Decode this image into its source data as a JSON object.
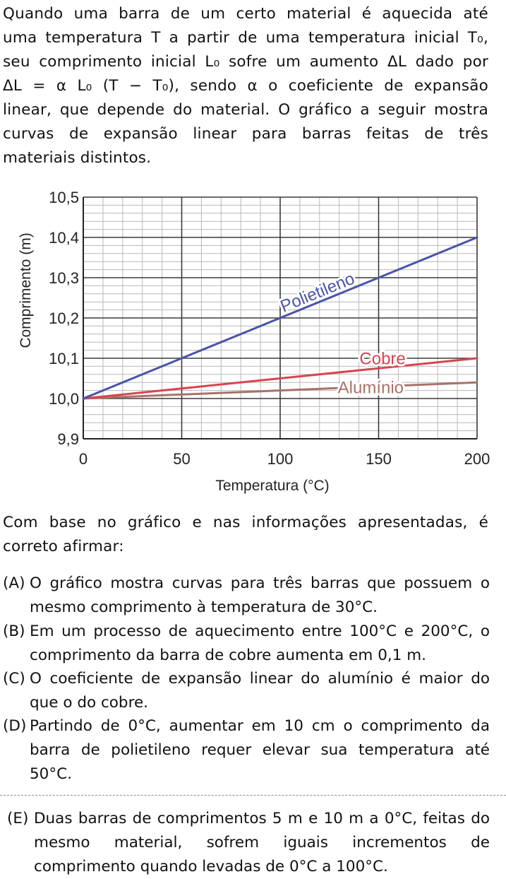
{
  "intro": {
    "lines": [
      "Quando uma barra de um certo material é aquecida até",
      "uma temperatura T a partir de uma temperatura inicial T₀,",
      "seu comprimento inicial L₀ sofre um aumento ΔL dado por",
      "ΔL = α L₀ (T − T₀), sendo α o coeficiente de expansão",
      "linear, que depende do material. O gráfico a seguir mostra",
      "curvas de expansão linear para barras feitas de três",
      "materiais distintos."
    ]
  },
  "question": {
    "lines": [
      "Com base no gráfico e nas informações apresentadas, é",
      "correto afirmar:"
    ]
  },
  "options": [
    {
      "letter": "(A)",
      "lines": [
        "O gráfico mostra curvas para três barras que possuem o",
        "mesmo comprimento à temperatura de 30°C."
      ]
    },
    {
      "letter": "(B)",
      "lines": [
        "Em um processo de aquecimento entre 100°C e 200°C, o",
        "comprimento da barra de cobre aumenta em 0,1 m."
      ]
    },
    {
      "letter": "(C)",
      "lines": [
        "O coeficiente de expansão linear do alumínio é maior do",
        "que o do cobre."
      ]
    },
    {
      "letter": "(D)",
      "lines": [
        "Partindo de 0°C, aumentar em 10 cm o comprimento da",
        "barra de polietileno requer elevar sua temperatura até",
        "50°C."
      ]
    },
    {
      "letter": "(E)",
      "lines": [
        "Duas barras de comprimentos 5 m e 10 m a 0°C, feitas do",
        "mesmo material, sofrem iguais incrementos de",
        "comprimento quando levadas de 0°C a 100°C."
      ]
    }
  ],
  "chart_data": {
    "type": "line",
    "title": "",
    "xlabel": "Temperatura (°C)",
    "ylabel": "Comprimento (m)",
    "xlim": [
      0,
      200
    ],
    "ylim": [
      9.9,
      10.5
    ],
    "x_ticks": [
      0,
      50,
      100,
      150,
      200
    ],
    "x_tick_labels": [
      "0",
      "50",
      "100",
      "150",
      "200"
    ],
    "y_ticks": [
      9.9,
      10.0,
      10.1,
      10.2,
      10.3,
      10.4,
      10.5
    ],
    "y_tick_labels": [
      "9,9",
      "10,0",
      "10,1",
      "10,2",
      "10,3",
      "10,4",
      "10,5"
    ],
    "grid": true,
    "series": [
      {
        "name": "Polietileno",
        "color": "#4a54a8",
        "x": [
          0,
          200
        ],
        "y": [
          10.0,
          10.4
        ]
      },
      {
        "name": "Cobre",
        "color": "#d9444e",
        "x": [
          0,
          200
        ],
        "y": [
          10.0,
          10.1
        ]
      },
      {
        "name": "Alumínio",
        "color": "#a9726a",
        "x": [
          0,
          200
        ],
        "y": [
          10.0,
          10.04
        ]
      }
    ]
  }
}
